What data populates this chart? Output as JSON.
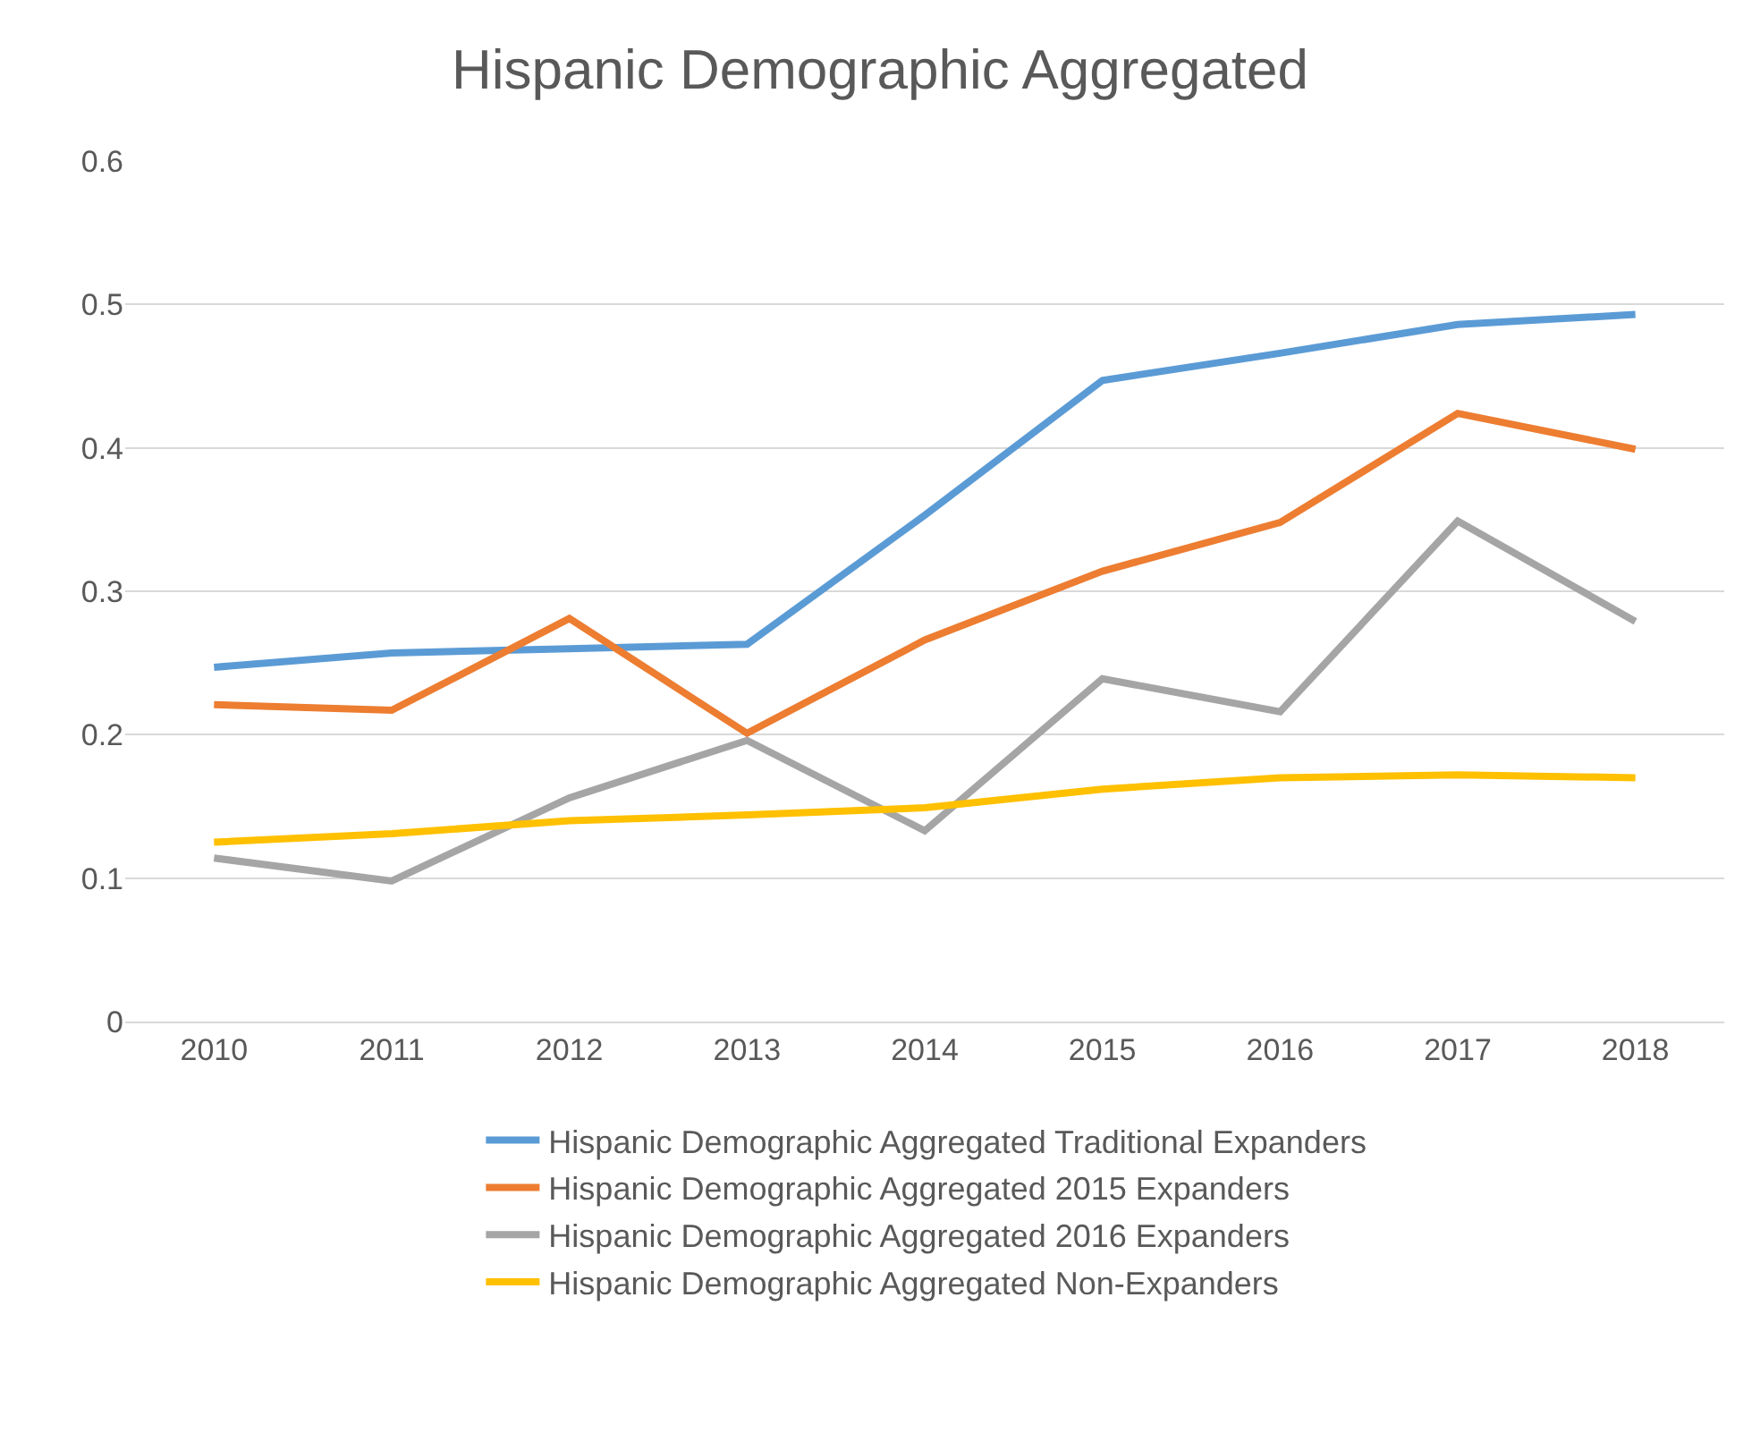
{
  "chart_data": {
    "type": "line",
    "title": "Hispanic Demographic Aggregated",
    "categories": [
      "2010",
      "2011",
      "2012",
      "2013",
      "2014",
      "2015",
      "2016",
      "2017",
      "2018"
    ],
    "series": [
      {
        "name": "Hispanic Demographic Aggregated Traditional Expanders",
        "color": "#5b9bd5",
        "values": [
          0.247,
          0.257,
          0.26,
          0.263,
          0.353,
          0.447,
          0.466,
          0.486,
          0.493
        ]
      },
      {
        "name": "Hispanic Demographic Aggregated 2015 Expanders",
        "color": "#ed7d31",
        "values": [
          0.221,
          0.217,
          0.281,
          0.201,
          0.266,
          0.314,
          0.348,
          0.424,
          0.399
        ]
      },
      {
        "name": "Hispanic Demographic Aggregated 2016 Expanders",
        "color": "#a5a5a5",
        "values": [
          0.114,
          0.098,
          0.156,
          0.196,
          0.133,
          0.239,
          0.216,
          0.349,
          0.279
        ]
      },
      {
        "name": "Hispanic Demographic Aggregated Non-Expanders",
        "color": "#ffc000",
        "values": [
          0.125,
          0.131,
          0.14,
          0.144,
          0.149,
          0.162,
          0.17,
          0.172,
          0.17
        ]
      }
    ],
    "ylim": [
      0,
      0.6
    ],
    "yticks": [
      0,
      0.1,
      0.2,
      0.3,
      0.4,
      0.5,
      0.6
    ],
    "grid": "y",
    "legend": "bottom",
    "marker": "none",
    "line_style": "solid"
  }
}
